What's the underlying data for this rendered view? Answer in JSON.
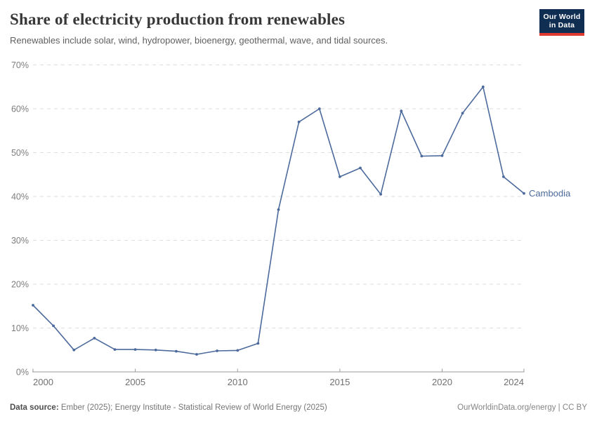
{
  "header": {
    "title": "Share of electricity production from renewables",
    "subtitle": "Renewables include solar, wind, hydropower, bioenergy, geothermal, wave, and tidal sources.",
    "logo": {
      "line1": "Our World",
      "line2": "in Data",
      "bg_color": "#0f2e52",
      "bar_color": "#e0392e"
    }
  },
  "chart_data": {
    "type": "line",
    "x": [
      2000,
      2001,
      2002,
      2003,
      2004,
      2005,
      2006,
      2007,
      2008,
      2009,
      2010,
      2011,
      2012,
      2013,
      2014,
      2015,
      2016,
      2017,
      2018,
      2019,
      2020,
      2021,
      2022,
      2023,
      2024
    ],
    "series": [
      {
        "name": "Cambodia",
        "color": "#4c6a9c",
        "values": [
          15.2,
          10.5,
          5.0,
          7.7,
          5.1,
          5.1,
          5.0,
          4.7,
          4.0,
          4.8,
          4.9,
          6.5,
          37.0,
          57.0,
          60.0,
          44.5,
          46.5,
          40.5,
          59.5,
          49.2,
          49.3,
          59.0,
          65.0,
          44.5,
          40.7
        ]
      }
    ],
    "title": "Share of electricity production from renewables",
    "xlabel": "",
    "ylabel": "",
    "ylim": [
      0,
      70
    ],
    "xlim": [
      2000,
      2024
    ],
    "y_ticks": [
      0,
      10,
      20,
      30,
      40,
      50,
      60,
      70
    ],
    "y_tick_labels": [
      "0%",
      "10%",
      "20%",
      "30%",
      "40%",
      "50%",
      "60%",
      "70%"
    ],
    "x_ticks": [
      2000,
      2005,
      2010,
      2015,
      2020,
      2024
    ],
    "x_tick_labels": [
      "2000",
      "2005",
      "2010",
      "2015",
      "2020",
      "2024"
    ],
    "grid": "horizontal-dashed",
    "legend_position": "end-of-line-label",
    "colors": {
      "gridline": "#dedede",
      "axis": "#9a9a9a",
      "y_tick_label": "#7d7d7d",
      "x_tick_label": "#707070"
    }
  },
  "footer": {
    "source_label": "Data source:",
    "source_text": " Ember (2025); Energy Institute - Statistical Review of World Energy (2025)",
    "rights": "OurWorldinData.org/energy | CC BY"
  }
}
